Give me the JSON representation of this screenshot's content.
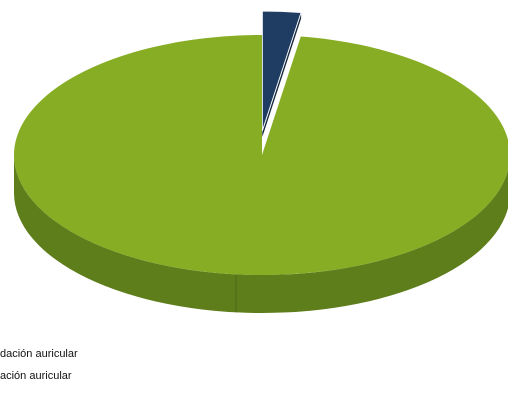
{
  "chart_data": {
    "type": "pie",
    "style": "3d-exploded",
    "title": "",
    "slices": [
      {
        "label": "dación auricular",
        "value": 97.5,
        "color": "#86ad23",
        "side_color": "#5e7d1b"
      },
      {
        "label": "ación auricular",
        "value": 2.5,
        "color": "#1f3c63",
        "side_color": "#14283f"
      }
    ],
    "legend": {
      "placement": "bottom-left",
      "entries": [
        "dación auricular",
        "ación auricular"
      ]
    }
  }
}
